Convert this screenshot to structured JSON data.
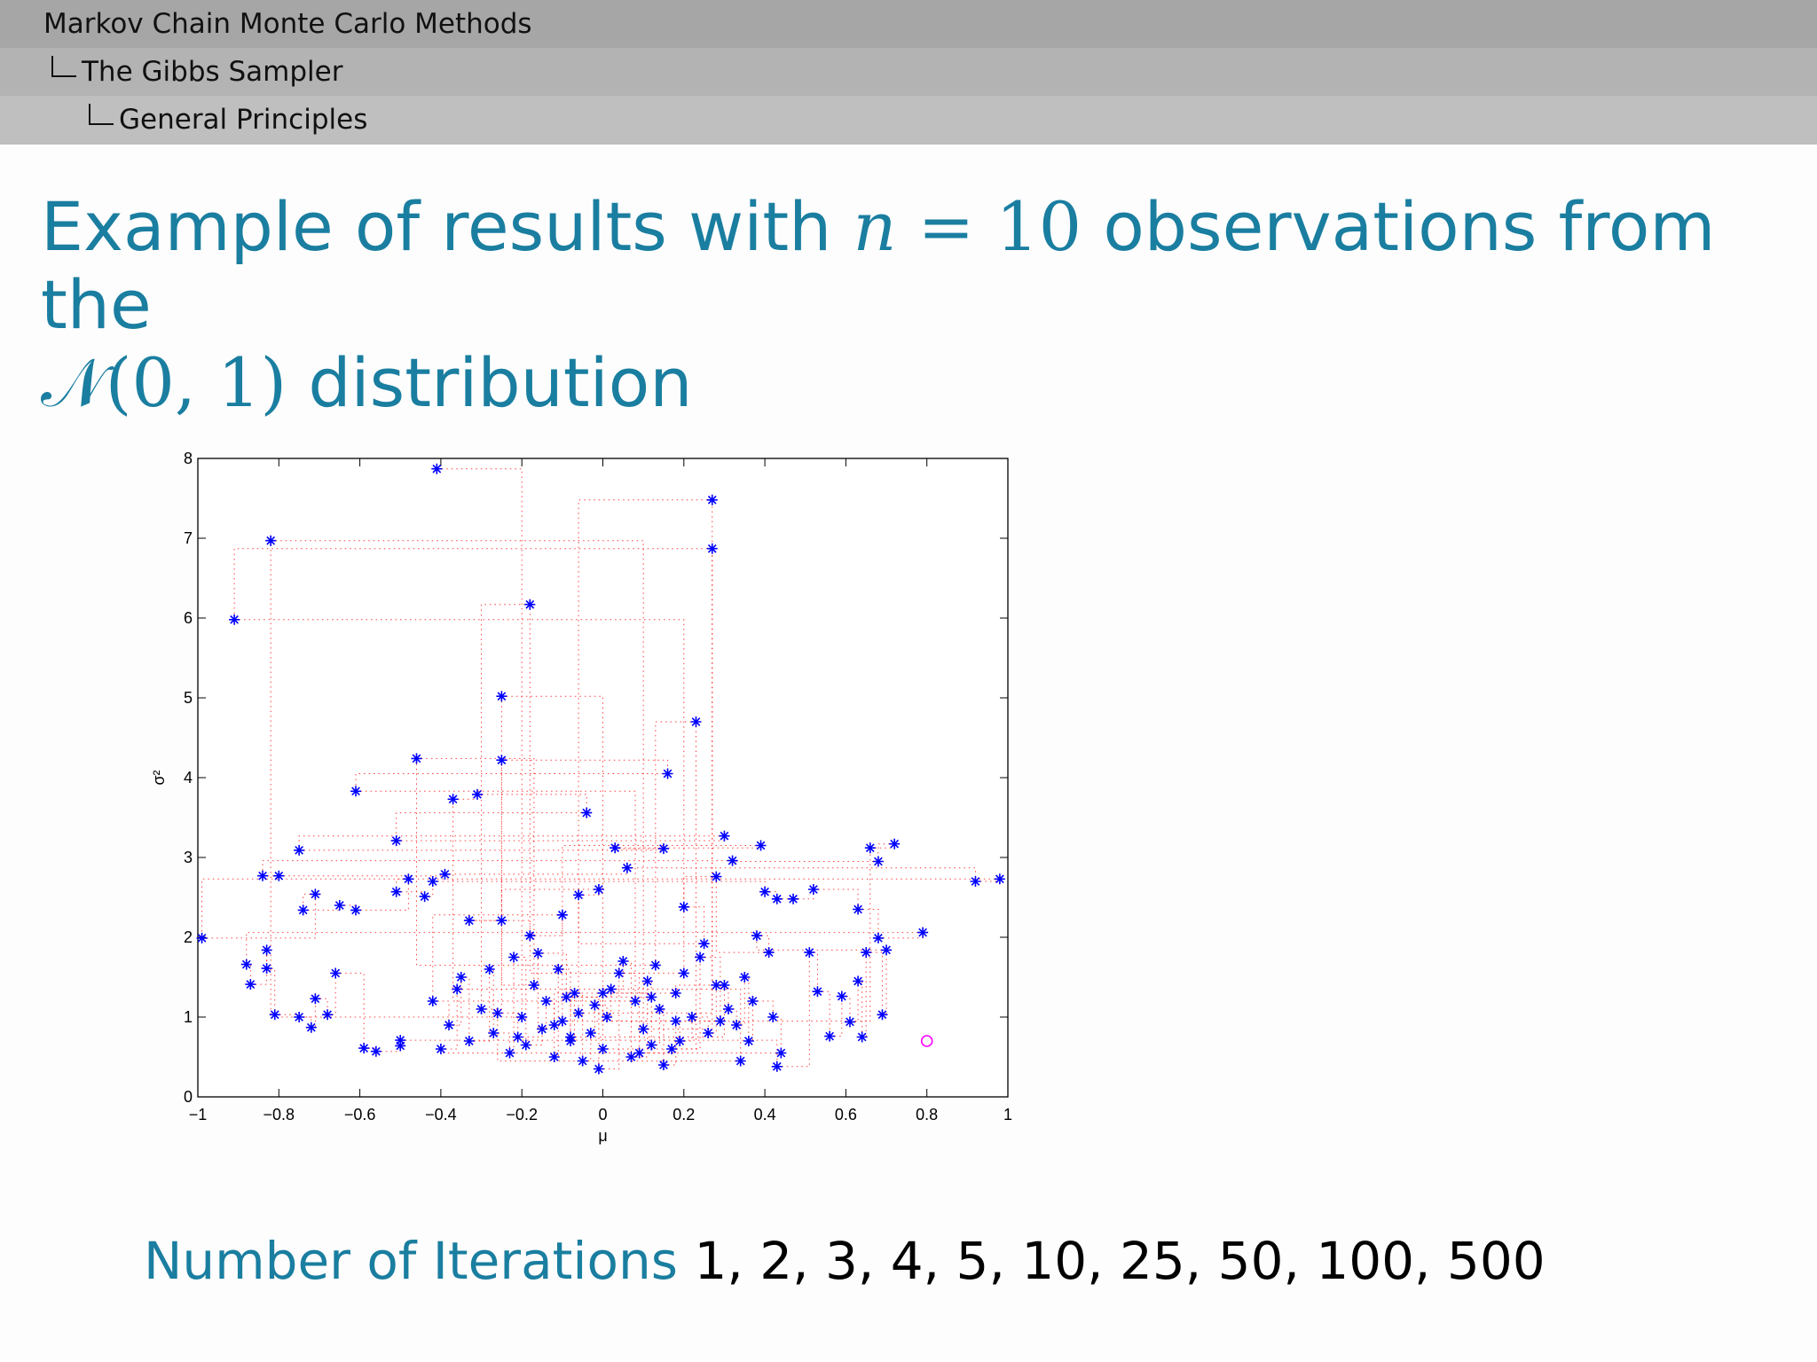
{
  "header": {
    "section": "Markov Chain Monte Carlo Methods",
    "subsection": "The Gibbs Sampler",
    "subsubsection": "General Principles"
  },
  "title": {
    "text1": "Example of results with",
    "math1": "n",
    "math2": "= 10",
    "text2": "observations from the",
    "math3": "𝒩(0, 1)",
    "text3": "distribution"
  },
  "chart_data": {
    "type": "scatter",
    "xlabel": "μ",
    "ylabel": "σ²",
    "xlim": [
      -1,
      1
    ],
    "ylim": [
      0,
      8
    ],
    "xticks": [
      {
        "value": -1,
        "label": "−1"
      },
      {
        "value": -0.8,
        "label": "−0.8"
      },
      {
        "value": -0.6,
        "label": "−0.6"
      },
      {
        "value": -0.4,
        "label": "−0.4"
      },
      {
        "value": -0.2,
        "label": "−0.2"
      },
      0,
      0.2,
      0.4,
      0.6,
      0.8,
      1
    ],
    "yticks": [
      0,
      1,
      2,
      3,
      4,
      5,
      6,
      7,
      8
    ],
    "series": [
      {
        "color": "#0000ff",
        "marker": "asterisk",
        "line_color": "#ff0000",
        "x": [
          -0.41,
          -0.2,
          -0.82,
          0.1,
          0.27,
          -0.06,
          0.27,
          -0.91,
          0.2,
          -0.18,
          -0.3,
          -0.25,
          0.0,
          0.23,
          0.13,
          -0.46,
          -0.17,
          -0.25,
          0.16,
          -0.61,
          0.08,
          -0.37,
          -0.31,
          -0.04,
          -0.51,
          0.3,
          -0.75,
          0.15,
          0.03,
          0.39,
          -0.1,
          0.66,
          0.72,
          0.68,
          0.32,
          -0.84,
          -0.8,
          -0.39,
          0.06,
          0.92,
          0.98,
          -0.99,
          -0.71,
          -0.74,
          -0.65,
          -0.61,
          -0.48,
          -0.51,
          -0.44,
          -0.42,
          0.4,
          0.43,
          0.47,
          0.52,
          0.63,
          0.68,
          0.79,
          -0.88,
          -0.87,
          -0.83,
          -0.83,
          -0.81,
          -0.75,
          -0.72,
          -0.71,
          -0.68,
          -0.66,
          -0.59,
          -0.56,
          -0.5,
          -0.5,
          0.43,
          0.51,
          0.53,
          0.56,
          0.59,
          0.61,
          0.63,
          0.64,
          0.65,
          0.69,
          0.7,
          0.38,
          0.41,
          0.28,
          0.2,
          0.25,
          -0.06,
          -0.01,
          -0.25,
          -0.33,
          -0.18,
          -0.1,
          -0.42,
          -0.38,
          -0.35,
          -0.33,
          -0.28,
          -0.27,
          -0.23,
          -0.22,
          -0.19,
          -0.15,
          -0.14,
          -0.12,
          -0.11,
          -0.08,
          -0.07,
          -0.05,
          -0.03,
          -0.02,
          0.01,
          0.02,
          0.05,
          0.07,
          0.11,
          0.12,
          0.14,
          0.15,
          0.18,
          0.19,
          0.22,
          0.26,
          0.28,
          0.31,
          0.33,
          0.35,
          0.36,
          0.37,
          0.42,
          0.44,
          -0.4,
          -0.36,
          0.34,
          -0.26,
          -0.21,
          -0.16,
          -0.09,
          -0.01,
          0.04,
          0.09,
          0.17,
          0.24,
          0.29,
          0.0,
          0.12,
          -0.08,
          0.3,
          0.18,
          -0.12
        ],
        "values": [
          7.87,
          1.0,
          6.97,
          0.85,
          7.48,
          1.05,
          6.87,
          5.98,
          1.55,
          6.17,
          1.1,
          5.02,
          0.6,
          4.7,
          1.65,
          4.24,
          1.4,
          4.22,
          4.05,
          3.83,
          1.2,
          3.73,
          3.79,
          3.56,
          3.21,
          3.27,
          3.09,
          3.11,
          3.12,
          3.15,
          0.95,
          3.12,
          3.17,
          2.95,
          2.96,
          2.77,
          2.77,
          2.79,
          2.87,
          2.7,
          2.73,
          1.99,
          2.54,
          2.34,
          2.4,
          2.34,
          2.73,
          2.57,
          2.51,
          2.7,
          2.57,
          2.48,
          2.48,
          2.6,
          2.35,
          1.99,
          2.06,
          1.66,
          1.41,
          1.84,
          1.61,
          1.03,
          1.0,
          0.87,
          1.23,
          1.03,
          1.55,
          0.61,
          0.57,
          0.64,
          0.71,
          0.38,
          1.81,
          1.32,
          0.76,
          1.26,
          0.94,
          1.45,
          0.75,
          1.81,
          1.03,
          1.84,
          2.02,
          1.81,
          2.76,
          2.38,
          1.92,
          2.53,
          2.6,
          2.21,
          2.21,
          2.02,
          2.28,
          1.2,
          0.9,
          1.5,
          0.7,
          1.6,
          0.8,
          0.55,
          1.75,
          0.65,
          0.85,
          1.2,
          0.5,
          1.6,
          0.7,
          1.3,
          0.45,
          0.8,
          1.15,
          1.0,
          1.35,
          1.7,
          0.5,
          1.45,
          0.65,
          1.1,
          0.4,
          0.95,
          0.7,
          1.0,
          0.8,
          1.4,
          1.1,
          0.9,
          1.5,
          0.7,
          1.2,
          1.0,
          0.55,
          0.6,
          1.35,
          0.45,
          1.05,
          0.75,
          1.8,
          1.25,
          0.35,
          1.55,
          0.55,
          0.6,
          1.75,
          0.95,
          1.3,
          1.25,
          0.75,
          1.4,
          1.3,
          0.9
        ]
      },
      {
        "color": "#ff00ff",
        "marker": "circle",
        "x": [
          0.8
        ],
        "values": [
          0.7
        ]
      }
    ]
  },
  "footer": {
    "label": "Number of Iterations",
    "values": "1, 2, 3, 4, 5, 10, 25, 50, 100, 500"
  }
}
